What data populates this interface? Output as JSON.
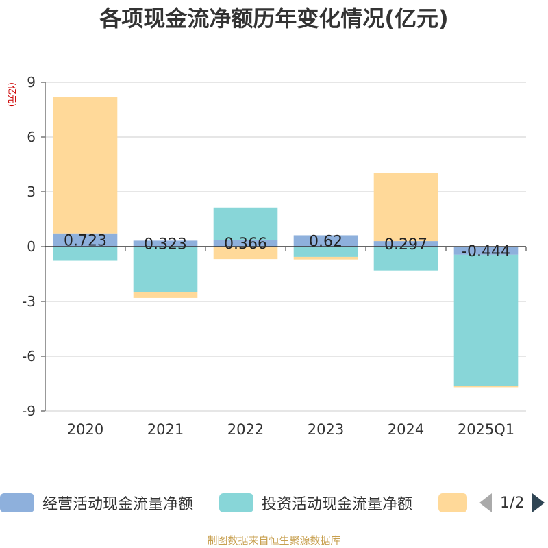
{
  "chart_data": {
    "type": "bar",
    "title": "各项现金流净额历年变化情况(亿元)",
    "unit_label": "(亿元)",
    "categories": [
      "2020",
      "2021",
      "2022",
      "2023",
      "2024",
      "2025Q1"
    ],
    "ylim": [
      -9,
      9
    ],
    "yticks": [
      9,
      6,
      3,
      0,
      -3,
      -6,
      -9
    ],
    "grid": true,
    "stacked": true,
    "legend_position": "bottom",
    "series": [
      {
        "name": "经营活动现金流量净额",
        "color": "#8eb0dc",
        "values": [
          0.723,
          0.323,
          0.366,
          0.62,
          0.297,
          -0.444
        ],
        "data_labels": [
          "0.723",
          "0.323",
          "0.366",
          "0.62",
          "0.297",
          "-0.444"
        ]
      },
      {
        "name": "投资活动现金流量净额",
        "color": "#88d6d8",
        "values": [
          -0.77,
          -2.48,
          1.78,
          -0.56,
          -1.3,
          -7.18
        ]
      },
      {
        "name": "",
        "color": "#ffd999",
        "values": [
          7.46,
          -0.33,
          -0.68,
          -0.14,
          3.72,
          -0.08
        ]
      }
    ]
  },
  "legend": {
    "page": "1/2"
  },
  "source_note": "制图数据来自恒生聚源数据库"
}
